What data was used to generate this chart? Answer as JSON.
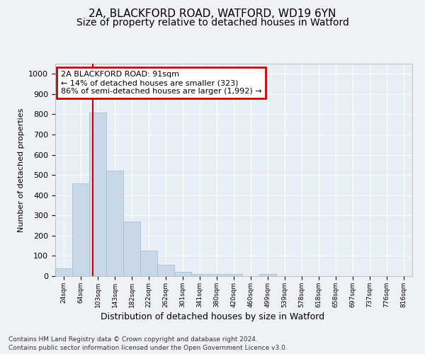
{
  "title_line1": "2A, BLACKFORD ROAD, WATFORD, WD19 6YN",
  "title_line2": "Size of property relative to detached houses in Watford",
  "xlabel": "Distribution of detached houses by size in Watford",
  "ylabel": "Number of detached properties",
  "footer_line1": "Contains HM Land Registry data © Crown copyright and database right 2024.",
  "footer_line2": "Contains public sector information licensed under the Open Government Licence v3.0.",
  "bin_labels": [
    "24sqm",
    "64sqm",
    "103sqm",
    "143sqm",
    "182sqm",
    "222sqm",
    "262sqm",
    "301sqm",
    "341sqm",
    "380sqm",
    "420sqm",
    "460sqm",
    "499sqm",
    "539sqm",
    "578sqm",
    "618sqm",
    "658sqm",
    "697sqm",
    "737sqm",
    "776sqm",
    "816sqm"
  ],
  "bar_values": [
    40,
    460,
    810,
    520,
    270,
    125,
    55,
    22,
    12,
    10,
    12,
    0,
    10,
    0,
    0,
    0,
    0,
    0,
    0,
    0,
    0
  ],
  "bar_color": "#c8d8e8",
  "bar_edge_color": "#a0b8d0",
  "marker_line_color": "#cc0000",
  "annotation_text": "2A BLACKFORD ROAD: 91sqm\n← 14% of detached houses are smaller (323)\n86% of semi-detached houses are larger (1,992) →",
  "annotation_box_color": "#cc0000",
  "ylim": [
    0,
    1050
  ],
  "yticks": [
    0,
    100,
    200,
    300,
    400,
    500,
    600,
    700,
    800,
    900,
    1000
  ],
  "background_color": "#eef2f7",
  "plot_bg_color": "#e8eef5",
  "grid_color": "#ffffff",
  "title_fontsize": 11,
  "subtitle_fontsize": 10
}
